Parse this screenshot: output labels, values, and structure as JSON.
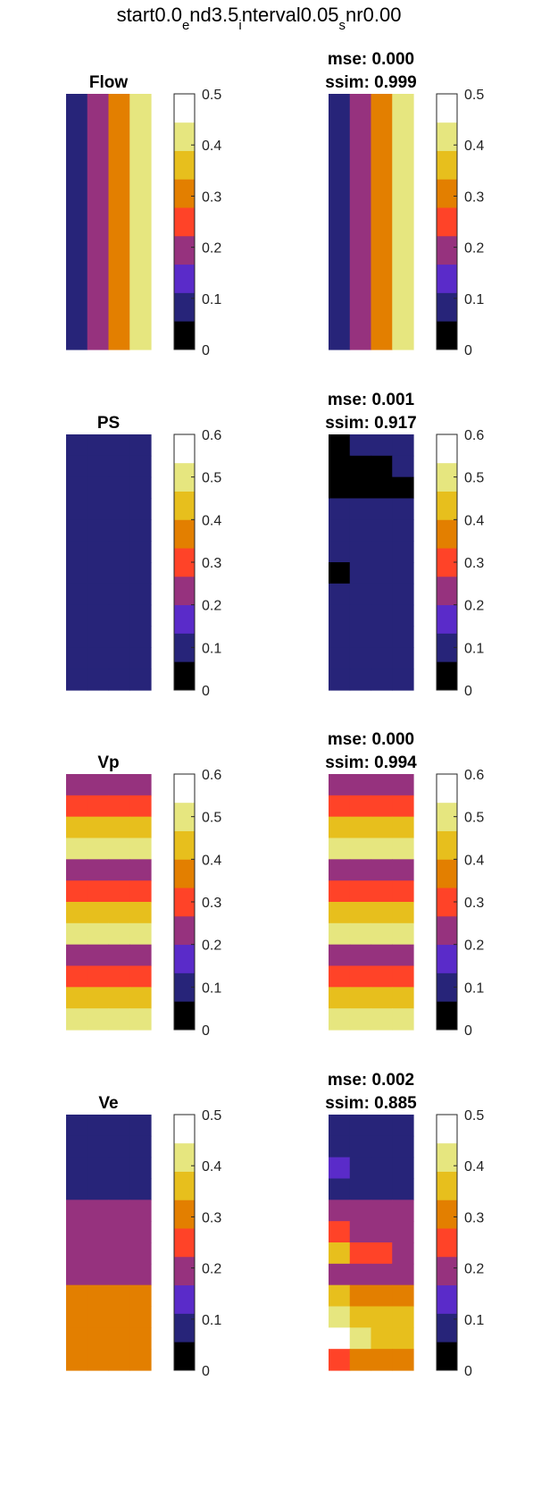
{
  "figure": {
    "suptitle_parts": [
      "start0.0",
      "e",
      "nd3.5",
      "i",
      "nterval0.05",
      "s",
      "nr0.00"
    ]
  },
  "colormap": [
    "#000000",
    "#272479",
    "#5a2bc9",
    "#96327e",
    "#ff4328",
    "#e37f00",
    "#e7bf1d",
    "#e6e67f",
    "#ffffff"
  ],
  "colors": {
    "0": "#000000",
    "1": "#272479",
    "2": "#5a2bc9",
    "3": "#96327e",
    "4": "#ff4328",
    "5": "#e37f00",
    "6": "#e7bf1d",
    "7": "#e6e67f",
    "8": "#ffffff"
  },
  "chart_data": [
    {
      "type": "heatmap",
      "title": "Flow",
      "clim": [
        0,
        0.5
      ],
      "colorbar_ticks": [
        "0",
        "0.1",
        "0.2",
        "0.3",
        "0.4",
        "0.5"
      ],
      "grid": [
        [
          1,
          3,
          5,
          7
        ]
      ]
    },
    {
      "type": "heatmap",
      "title_lines": [
        "mse: 0.000",
        "ssim: 0.999"
      ],
      "clim": [
        0,
        0.5
      ],
      "colorbar_ticks": [
        "0",
        "0.1",
        "0.2",
        "0.3",
        "0.4",
        "0.5"
      ],
      "grid": [
        [
          1,
          3,
          5,
          7
        ]
      ]
    },
    {
      "type": "heatmap",
      "title": "PS",
      "clim": [
        0,
        0.6
      ],
      "colorbar_ticks": [
        "0",
        "0.1",
        "0.2",
        "0.3",
        "0.4",
        "0.5",
        "0.6"
      ],
      "grid": [
        [
          1,
          1,
          1,
          1
        ],
        [
          1,
          1,
          1,
          1
        ],
        [
          1,
          1,
          1,
          1
        ],
        [
          1,
          1,
          1,
          1
        ],
        [
          1,
          1,
          1,
          1
        ],
        [
          1,
          1,
          1,
          1
        ],
        [
          1,
          1,
          1,
          1
        ],
        [
          1,
          1,
          1,
          1
        ],
        [
          1,
          1,
          1,
          1
        ],
        [
          1,
          1,
          1,
          1
        ],
        [
          1,
          1,
          1,
          1
        ],
        [
          1,
          1,
          1,
          1
        ]
      ]
    },
    {
      "type": "heatmap",
      "title_lines": [
        "mse: 0.001",
        "ssim: 0.917"
      ],
      "clim": [
        0,
        0.6
      ],
      "colorbar_ticks": [
        "0",
        "0.1",
        "0.2",
        "0.3",
        "0.4",
        "0.5",
        "0.6"
      ],
      "grid": [
        [
          0,
          1,
          1,
          1
        ],
        [
          0,
          0,
          0,
          1
        ],
        [
          0,
          0,
          0,
          0
        ],
        [
          1,
          1,
          1,
          1
        ],
        [
          1,
          1,
          1,
          1
        ],
        [
          1,
          1,
          1,
          1
        ],
        [
          0,
          1,
          1,
          1
        ],
        [
          1,
          1,
          1,
          1
        ],
        [
          1,
          1,
          1,
          1
        ],
        [
          1,
          1,
          1,
          1
        ],
        [
          1,
          1,
          1,
          1
        ],
        [
          1,
          1,
          1,
          1
        ]
      ]
    },
    {
      "type": "heatmap",
      "title": "Vp",
      "clim": [
        0,
        0.6
      ],
      "colorbar_ticks": [
        "0",
        "0.1",
        "0.2",
        "0.3",
        "0.4",
        "0.5",
        "0.6"
      ],
      "grid": [
        [
          3,
          3,
          3,
          3
        ],
        [
          4,
          4,
          4,
          4
        ],
        [
          6,
          6,
          6,
          6
        ],
        [
          7,
          7,
          7,
          7
        ],
        [
          3,
          3,
          3,
          3
        ],
        [
          4,
          4,
          4,
          4
        ],
        [
          6,
          6,
          6,
          6
        ],
        [
          7,
          7,
          7,
          7
        ],
        [
          3,
          3,
          3,
          3
        ],
        [
          4,
          4,
          4,
          4
        ],
        [
          6,
          6,
          6,
          6
        ],
        [
          7,
          7,
          7,
          7
        ]
      ]
    },
    {
      "type": "heatmap",
      "title_lines": [
        "mse: 0.000",
        "ssim: 0.994"
      ],
      "clim": [
        0,
        0.6
      ],
      "colorbar_ticks": [
        "0",
        "0.1",
        "0.2",
        "0.3",
        "0.4",
        "0.5",
        "0.6"
      ],
      "grid": [
        [
          3,
          3,
          3,
          3
        ],
        [
          4,
          4,
          4,
          4
        ],
        [
          6,
          6,
          6,
          6
        ],
        [
          7,
          7,
          7,
          7
        ],
        [
          3,
          3,
          3,
          3
        ],
        [
          4,
          4,
          4,
          4
        ],
        [
          6,
          6,
          6,
          6
        ],
        [
          7,
          7,
          7,
          7
        ],
        [
          3,
          3,
          3,
          3
        ],
        [
          4,
          4,
          4,
          4
        ],
        [
          6,
          6,
          6,
          6
        ],
        [
          7,
          7,
          7,
          7
        ]
      ]
    },
    {
      "type": "heatmap",
      "title": "Ve",
      "clim": [
        0,
        0.5
      ],
      "colorbar_ticks": [
        "0",
        "0.1",
        "0.2",
        "0.3",
        "0.4",
        "0.5"
      ],
      "grid": [
        [
          1,
          1,
          1,
          1
        ],
        [
          1,
          1,
          1,
          1
        ],
        [
          1,
          1,
          1,
          1
        ],
        [
          1,
          1,
          1,
          1
        ],
        [
          3,
          3,
          3,
          3
        ],
        [
          3,
          3,
          3,
          3
        ],
        [
          3,
          3,
          3,
          3
        ],
        [
          3,
          3,
          3,
          3
        ],
        [
          5,
          5,
          5,
          5
        ],
        [
          5,
          5,
          5,
          5
        ],
        [
          5,
          5,
          5,
          5
        ],
        [
          5,
          5,
          5,
          5
        ]
      ]
    },
    {
      "type": "heatmap",
      "title_lines": [
        "mse: 0.002",
        "ssim: 0.885"
      ],
      "clim": [
        0,
        0.5
      ],
      "colorbar_ticks": [
        "0",
        "0.1",
        "0.2",
        "0.3",
        "0.4",
        "0.5"
      ],
      "grid": [
        [
          1,
          1,
          1,
          1
        ],
        [
          1,
          1,
          1,
          1
        ],
        [
          2,
          1,
          1,
          1
        ],
        [
          1,
          1,
          1,
          1
        ],
        [
          3,
          3,
          3,
          3
        ],
        [
          4,
          3,
          3,
          3
        ],
        [
          6,
          4,
          4,
          3
        ],
        [
          3,
          3,
          3,
          3
        ],
        [
          6,
          5,
          5,
          5
        ],
        [
          7,
          6,
          6,
          6
        ],
        [
          8,
          7,
          6,
          6
        ],
        [
          4,
          5,
          5,
          5
        ]
      ]
    }
  ]
}
